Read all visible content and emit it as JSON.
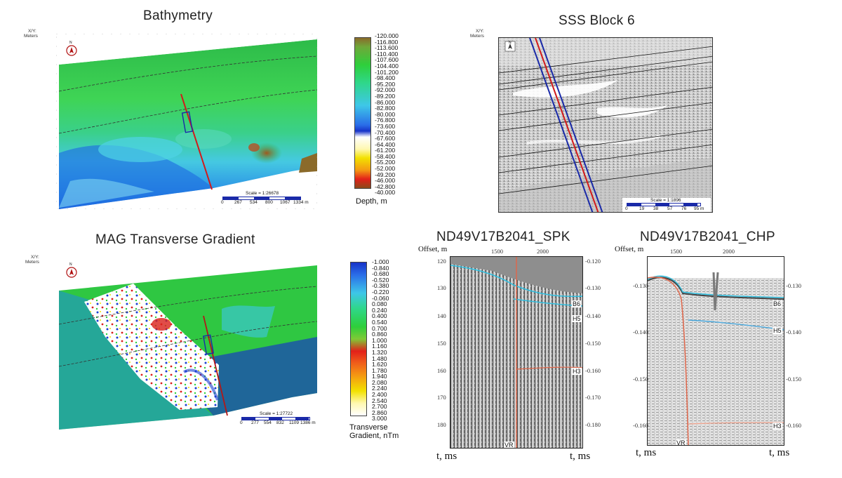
{
  "bathymetry": {
    "title": "Bathymetry",
    "axis_label_line1": "X/Y:",
    "axis_label_line2": "Meters",
    "compass": "N",
    "colorbar_labels": [
      "-120.000",
      "-116.800",
      "-113.600",
      "-110.400",
      "-107.600",
      "-104.400",
      "-101.200",
      "-98.400",
      "-95.200",
      "-92.000",
      "-89.200",
      "-86.000",
      "-82.800",
      "-80.000",
      "-76.800",
      "-73.600",
      "-70.400",
      "-67.600",
      "-64.400",
      "-61.200",
      "-58.400",
      "-55.200",
      "-52.000",
      "-49.200",
      "-46.000",
      "-42.800",
      "-40.000"
    ],
    "legend_title": "Depth, m",
    "scale_caption": "Scale = 1:26678",
    "scale_ticks": [
      "0",
      "267",
      "534",
      "800",
      "1067",
      "1334 m"
    ],
    "colors": {
      "deep": "#8a6a2a",
      "green": "#2fbf3f",
      "cyan": "#3ec7e8",
      "blue": "#1733c8",
      "white": "#ffffff",
      "yellow": "#f2e100",
      "red": "#e3201a",
      "brown": "#8b4a1a"
    }
  },
  "sss": {
    "title": "SSS Block 6",
    "axis_label_line1": "X/Y:",
    "axis_label_line2": "Meters",
    "compass": "N",
    "scale_caption": "Scale = 1:1896",
    "scale_ticks": [
      "0",
      "19",
      "38",
      "57",
      "76",
      "95 m"
    ]
  },
  "mag": {
    "title": "MAG Transverse Gradient",
    "axis_label_line1": "X/Y:",
    "axis_label_line2": "Meters",
    "compass": "N",
    "colorbar_labels": [
      "-1.000",
      "-0.840",
      "-0.680",
      "-0.520",
      "-0.380",
      "-0.220",
      "-0.060",
      "0.080",
      "0.240",
      "0.400",
      "0.540",
      "0.700",
      "0.860",
      "1.000",
      "1.160",
      "1.320",
      "1.480",
      "1.620",
      "1.780",
      "1.940",
      "2.080",
      "2.240",
      "2.400",
      "2.540",
      "2.700",
      "2.860",
      "3.000"
    ],
    "legend_title_line1": "Transverse",
    "legend_title_line2": "Gradient, nTm",
    "scale_caption": "Scale = 1:27722",
    "scale_ticks": [
      "0",
      "277",
      "554",
      "832",
      "1109",
      "1386 m"
    ]
  },
  "spk": {
    "title": "ND49V17B2041_SPK",
    "offset_label": "Offset, m",
    "top_ticks": [
      "1500",
      "2000"
    ],
    "left_ticks": [
      "120",
      "130",
      "140",
      "150",
      "160",
      "170",
      "180"
    ],
    "right_ticks": [
      "-0.120",
      "-0.130",
      "-0.140",
      "-0.150",
      "-0.160",
      "-0.170",
      "-0.180"
    ],
    "horizons": [
      "B6",
      "H5",
      "H3"
    ],
    "vr_label": "VR",
    "bottom_left": "t, ms",
    "bottom_right": "t, ms"
  },
  "chp": {
    "title": "ND49V17B2041_CHP",
    "offset_label": "Offset, m",
    "top_ticks": [
      "1500",
      "2000"
    ],
    "left_ticks": [
      "-0.130",
      "-0.140",
      "-0.150",
      "-0.160"
    ],
    "right_ticks": [
      "-0.130",
      "-0.140",
      "-0.150",
      "-0.160"
    ],
    "horizons": [
      "B6",
      "H5",
      "H3"
    ],
    "vr_label": "VR",
    "bottom_left": "t, ms",
    "bottom_right": "t, ms"
  }
}
